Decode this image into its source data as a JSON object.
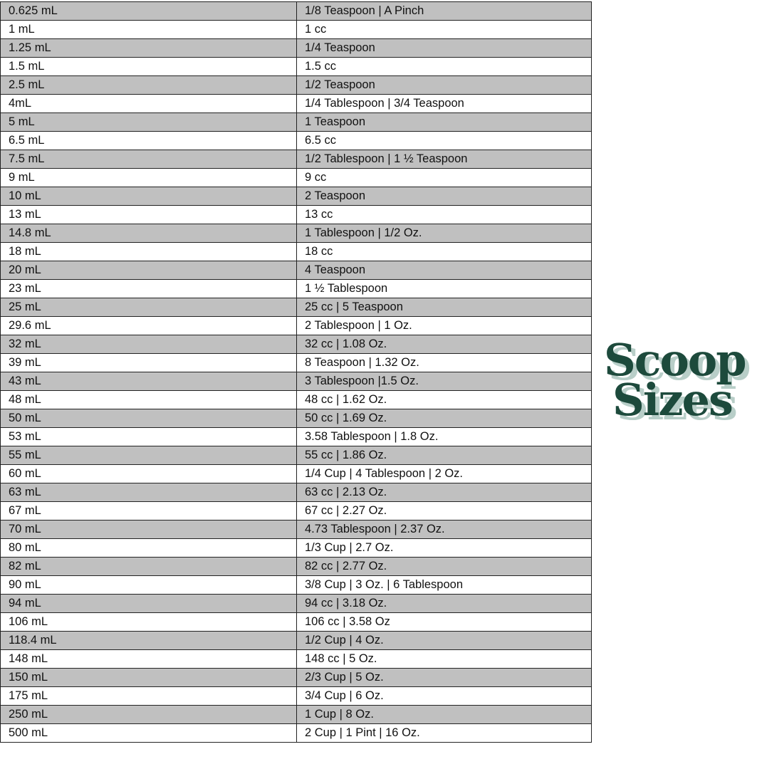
{
  "title": {
    "line1": "Scoop",
    "line2": "Sizes",
    "color": "#1d4a3c",
    "shadow_color": "#b8cec8"
  },
  "row_colors": {
    "odd": "#c0c0c0",
    "even": "#ffffff"
  },
  "rows": [
    [
      "0.625 mL",
      "1/8 Teaspoon | A Pinch"
    ],
    [
      "1 mL",
      "1 cc"
    ],
    [
      "1.25 mL",
      "1/4 Teaspoon"
    ],
    [
      "1.5 mL",
      "1.5 cc"
    ],
    [
      "2.5 mL",
      "1/2 Teaspoon"
    ],
    [
      "4mL",
      "1/4 Tablespoon | 3/4 Teaspoon"
    ],
    [
      "5 mL",
      "1 Teaspoon"
    ],
    [
      "6.5 mL",
      "6.5 cc"
    ],
    [
      "7.5 mL",
      "1/2 Tablespoon | 1 ½ Teaspoon"
    ],
    [
      "9 mL",
      "9 cc"
    ],
    [
      "10 mL",
      "2 Teaspoon"
    ],
    [
      "13 mL",
      "13 cc"
    ],
    [
      "14.8 mL",
      "1 Tablespoon | 1/2 Oz."
    ],
    [
      "18 mL",
      "18 cc"
    ],
    [
      "20 mL",
      "4 Teaspoon"
    ],
    [
      "23 mL",
      "1 ½ Tablespoon"
    ],
    [
      "25 mL",
      "25 cc | 5 Teaspoon"
    ],
    [
      "29.6 mL",
      "2 Tablespoon | 1 Oz."
    ],
    [
      "32 mL",
      "32 cc | 1.08 Oz."
    ],
    [
      "39 mL",
      "8 Teaspoon | 1.32 Oz."
    ],
    [
      "43 mL",
      "3 Tablespoon |1.5 Oz."
    ],
    [
      "48 mL",
      "48 cc | 1.62 Oz."
    ],
    [
      "50 mL",
      "50 cc | 1.69 Oz."
    ],
    [
      "53 mL",
      "3.58 Tablespoon | 1.8 Oz."
    ],
    [
      "55 mL",
      "55 cc | 1.86 Oz."
    ],
    [
      "60 mL",
      "1/4 Cup | 4 Tablespoon | 2 Oz."
    ],
    [
      "63 mL",
      "63 cc | 2.13 Oz."
    ],
    [
      "67 mL",
      "67 cc | 2.27 Oz."
    ],
    [
      "70 mL",
      "4.73 Tablespoon | 2.37 Oz."
    ],
    [
      "80 mL",
      "1/3 Cup | 2.7 Oz."
    ],
    [
      "82 mL",
      "82 cc | 2.77 Oz."
    ],
    [
      "90 mL",
      "3/8 Cup | 3 Oz. | 6 Tablespoon"
    ],
    [
      "94 mL",
      "94 cc | 3.18 Oz."
    ],
    [
      "106 mL",
      "106 cc | 3.58 Oz"
    ],
    [
      "118.4 mL",
      "1/2 Cup | 4 Oz."
    ],
    [
      "148 mL",
      "148 cc | 5 Oz."
    ],
    [
      "150 mL",
      "2/3 Cup | 5 Oz."
    ],
    [
      "175 mL",
      "3/4 Cup | 6 Oz."
    ],
    [
      "250 mL",
      "1 Cup | 8 Oz."
    ],
    [
      "500 mL",
      "2 Cup | 1 Pint | 16 Oz."
    ]
  ]
}
